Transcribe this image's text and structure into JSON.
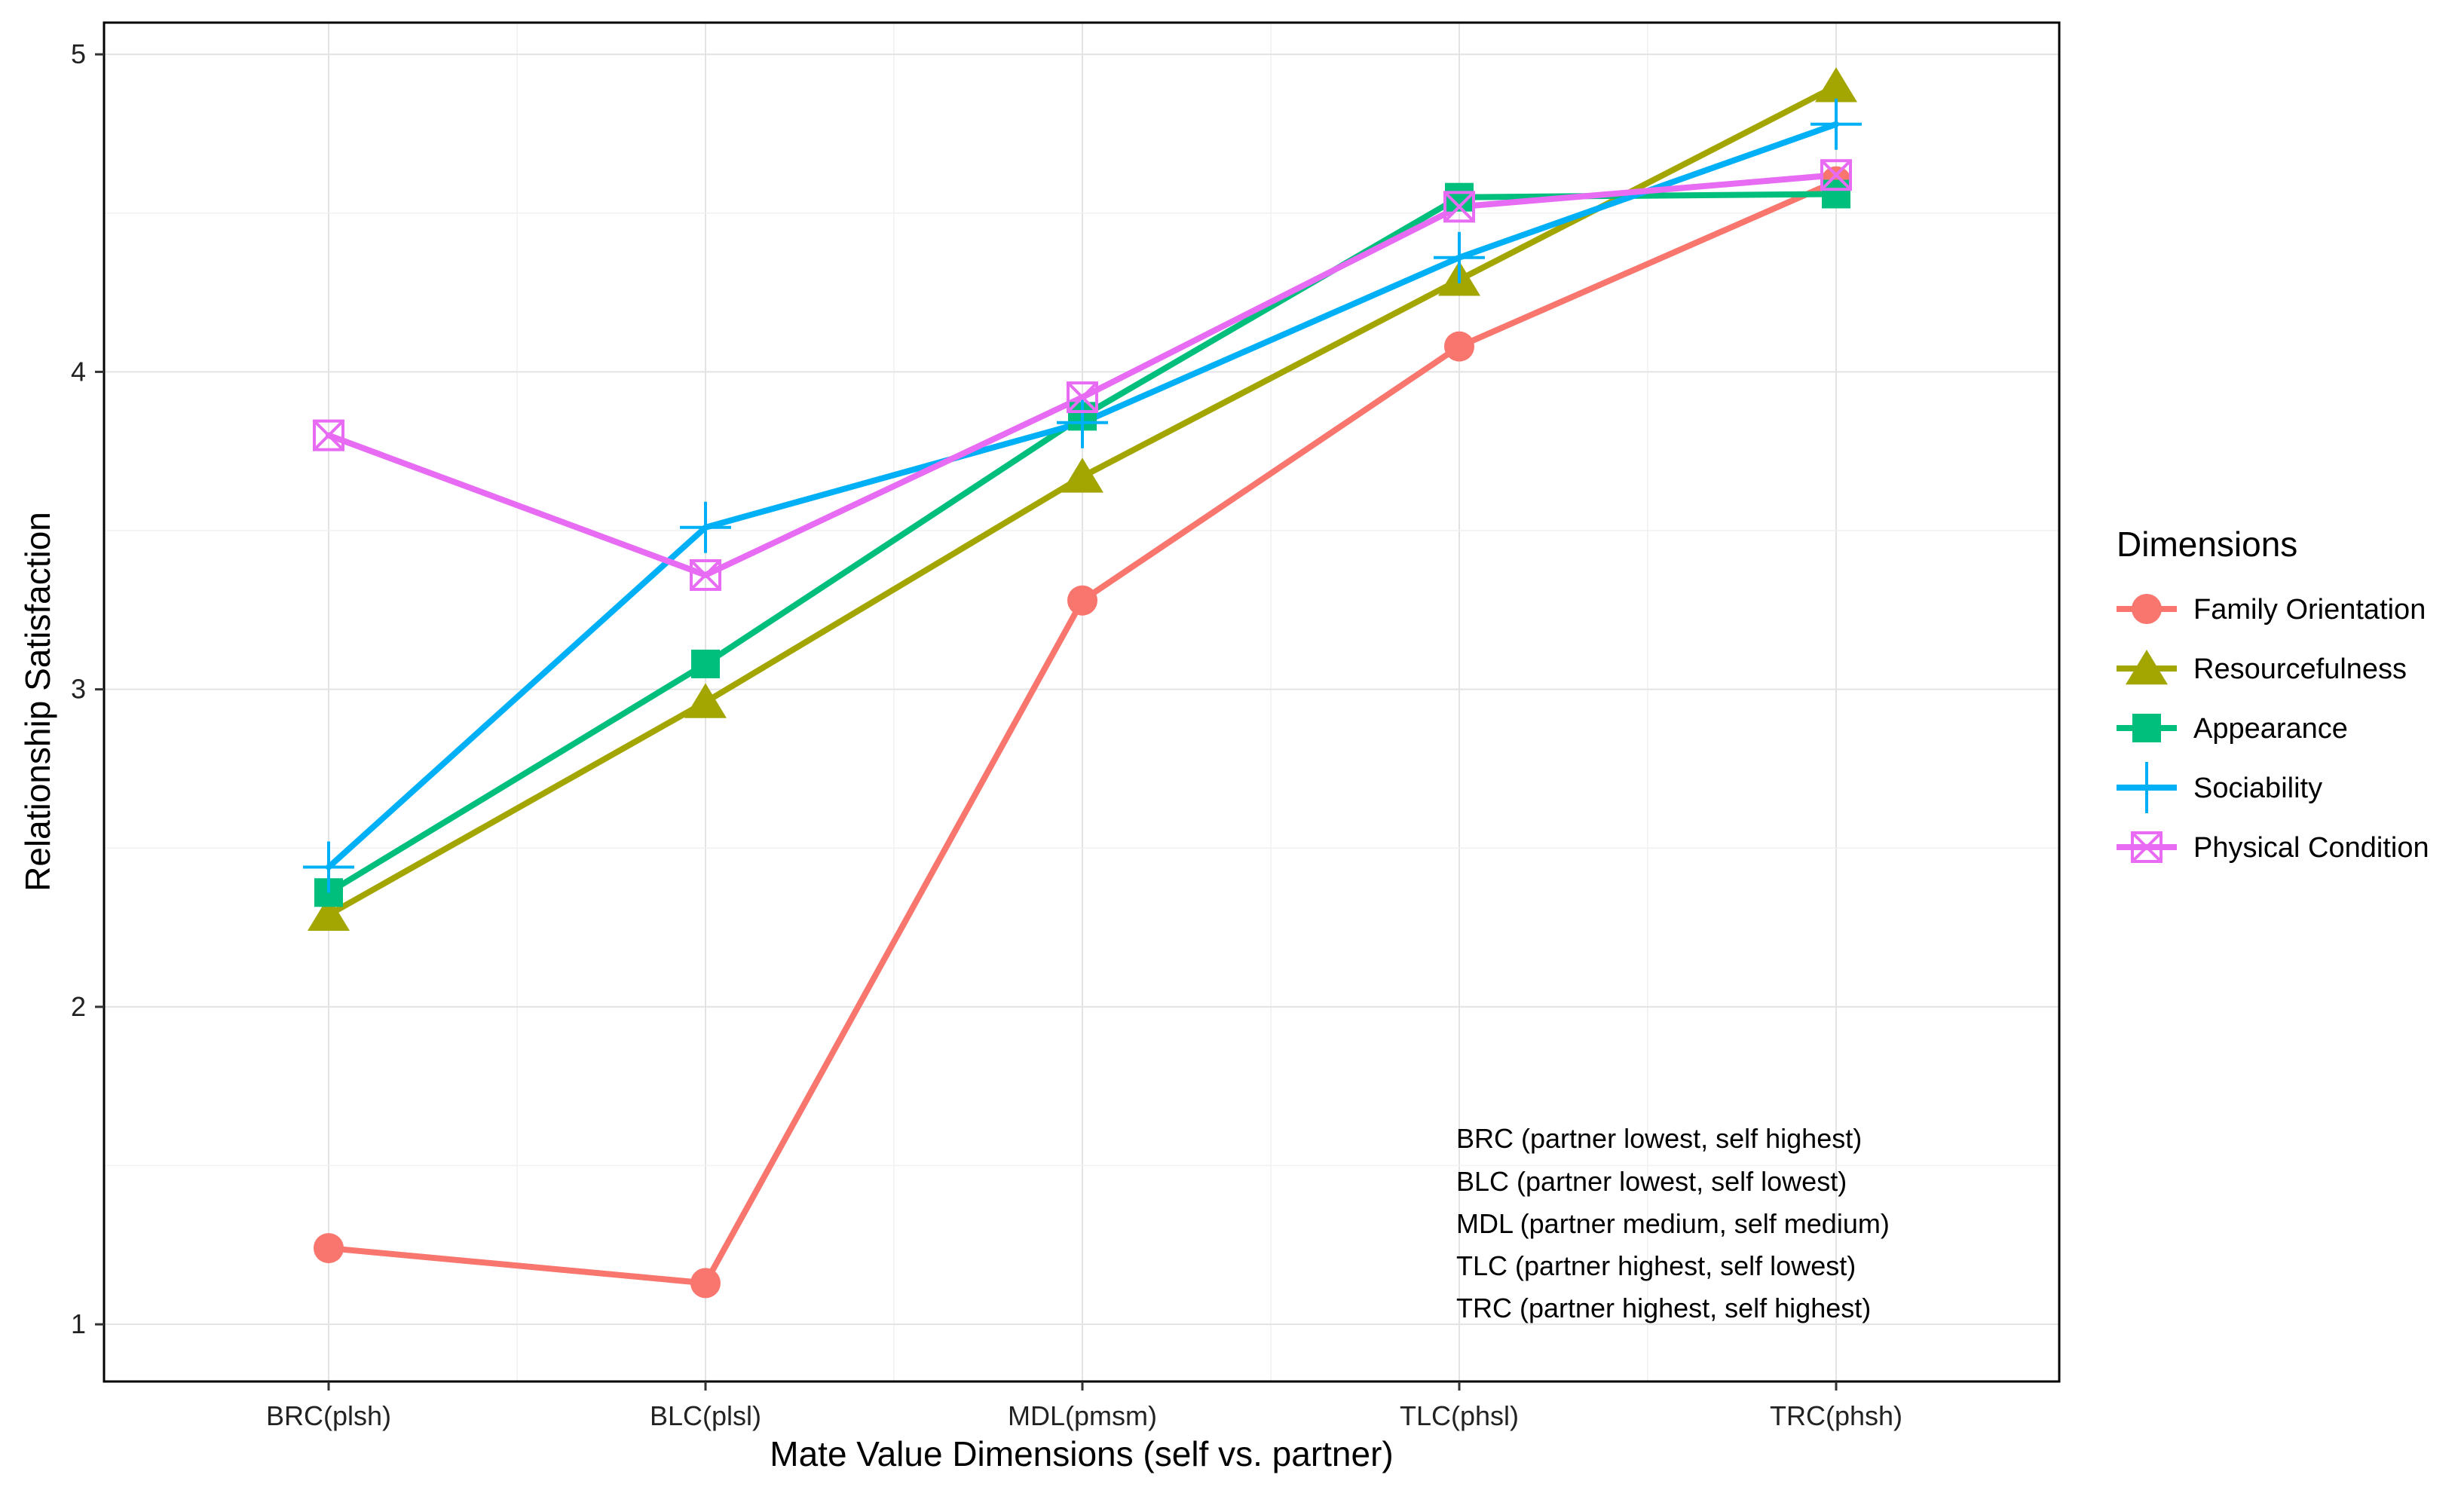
{
  "chart_data": {
    "type": "line",
    "xlabel": "Mate Value Dimensions (self vs. partner)",
    "ylabel": "Relationship Satisfaction",
    "categories": [
      "BRC(plsh)",
      "BLC(plsl)",
      "MDL(pmsm)",
      "TLC(phsl)",
      "TRC(phsh)"
    ],
    "ylim": [
      0.82,
      5.1
    ],
    "yticks": [
      1,
      2,
      3,
      4,
      5
    ],
    "grid": true,
    "legend": {
      "title": "Dimensions",
      "position": "right"
    },
    "series": [
      {
        "name": "Family Orientation",
        "color": "#F8766D",
        "marker": "circle",
        "values": [
          1.24,
          1.13,
          3.28,
          4.08,
          4.6
        ]
      },
      {
        "name": "Resourcefulness",
        "color": "#A3A500",
        "marker": "triangle",
        "values": [
          2.29,
          2.96,
          3.67,
          4.29,
          4.9
        ]
      },
      {
        "name": "Appearance",
        "color": "#00BF7D",
        "marker": "square",
        "values": [
          2.36,
          3.08,
          3.86,
          4.55,
          4.56
        ]
      },
      {
        "name": "Sociability",
        "color": "#00B0F6",
        "marker": "plus",
        "values": [
          2.44,
          3.51,
          3.84,
          4.36,
          4.78
        ]
      },
      {
        "name": "Physical Condition",
        "color": "#E76BF3",
        "marker": "square-x",
        "values": [
          3.8,
          3.36,
          3.92,
          4.52,
          4.62
        ]
      }
    ],
    "annotations": [
      "BRC (partner lowest, self highest)",
      "BLC (partner lowest, self lowest)",
      "MDL (partner medium, self medium)",
      "TLC (partner highest, self lowest)",
      "TRC (partner highest, self highest)"
    ]
  }
}
